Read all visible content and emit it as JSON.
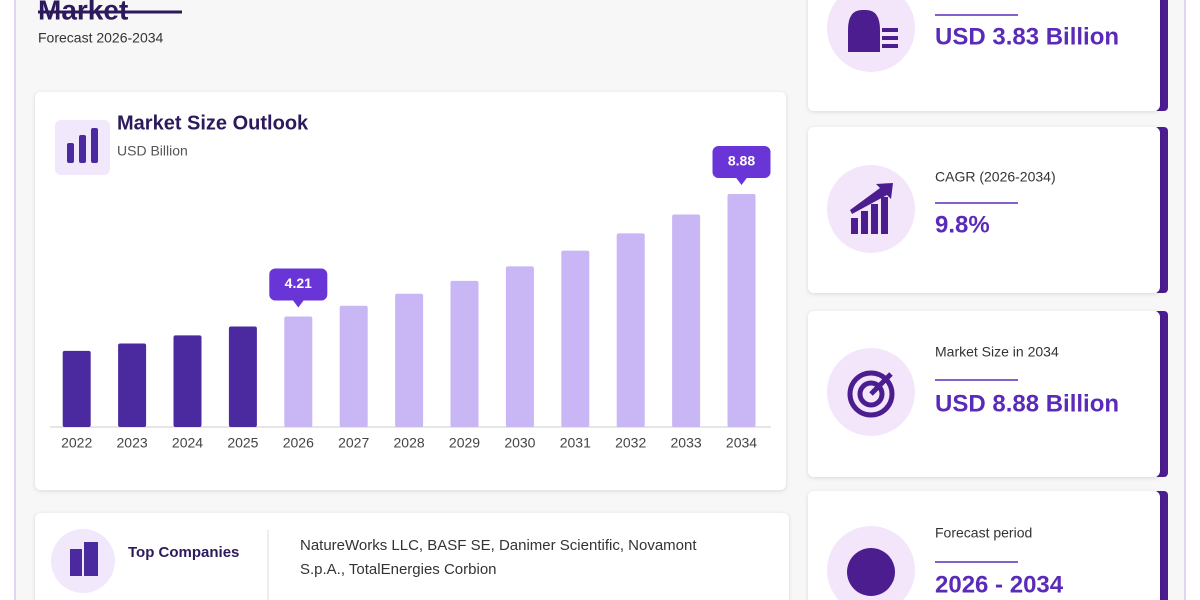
{
  "header": {
    "title": "Market",
    "subtitle": "Forecast 2026-2034"
  },
  "chart_data": {
    "type": "bar",
    "title": "Market Size Outlook",
    "subtitle": "USD Billion",
    "categories": [
      "2022",
      "2023",
      "2024",
      "2025",
      "2026",
      "2027",
      "2028",
      "2029",
      "2030",
      "2031",
      "2032",
      "2033",
      "2034"
    ],
    "values": [
      2.9,
      3.18,
      3.49,
      3.83,
      4.21,
      4.62,
      5.08,
      5.57,
      6.12,
      6.72,
      7.38,
      8.1,
      8.88
    ],
    "colors": [
      "#4b2a9f",
      "#4b2a9f",
      "#4b2a9f",
      "#4b2a9f",
      "#c8b7f4",
      "#c8b7f4",
      "#c8b7f4",
      "#c8b7f4",
      "#c8b7f4",
      "#c8b7f4",
      "#c8b7f4",
      "#c8b7f4",
      "#c8b7f4"
    ],
    "value_labels": [
      null,
      null,
      null,
      null,
      "4.21",
      null,
      null,
      null,
      null,
      null,
      null,
      null,
      "8.88"
    ]
  },
  "companies": {
    "label": "Top Companies",
    "lines": [
      "NatureWorks LLC, BASF SE, Danimer Scientific, Novamont",
      "S.p.A., TotalEnergies Corbion"
    ]
  },
  "cards": [
    {
      "value": "USD 3.83 Billion"
    },
    {
      "label": "CAGR (2026-2034)",
      "value": "9.8%"
    },
    {
      "label": "Market Size in 2034",
      "value": "USD 8.88 Billion"
    },
    {
      "label": "Forecast period",
      "value": "2026 - 2034"
    }
  ]
}
